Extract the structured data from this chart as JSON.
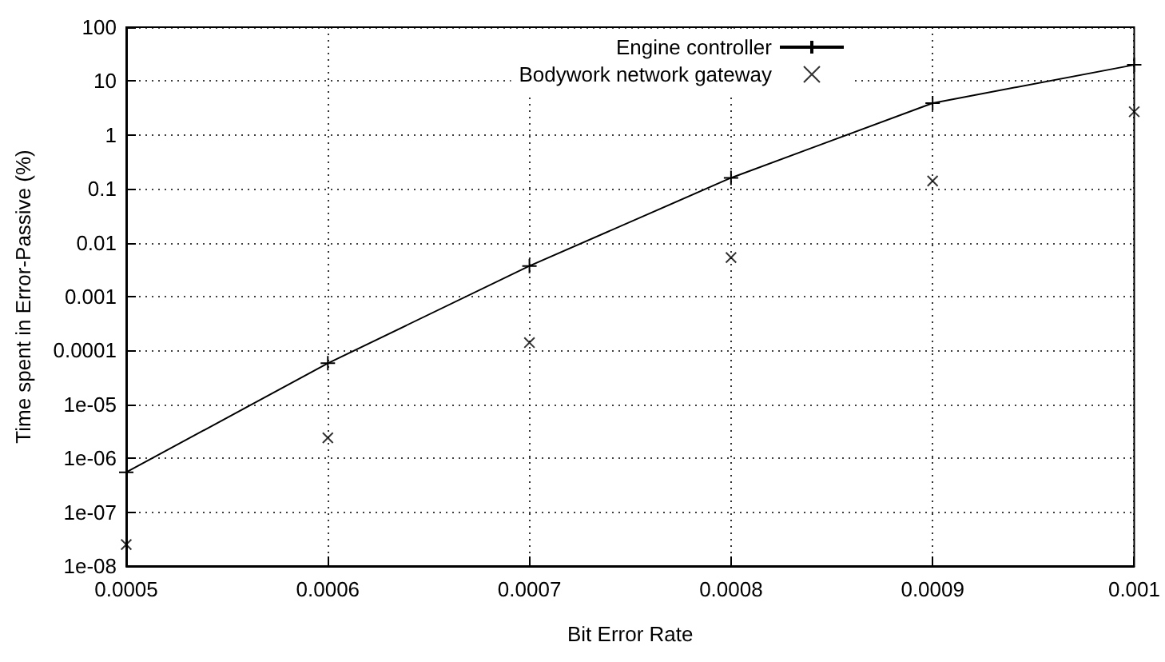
{
  "chart_data": {
    "type": "line",
    "xlabel": "Bit Error Rate",
    "ylabel": "Time spent in Error-Passive (%)",
    "x": [
      0.0005,
      0.0006,
      0.0007,
      0.0008,
      0.0009,
      0.001
    ],
    "series": [
      {
        "name": "Engine controller",
        "color": "#000000",
        "marker": "cross",
        "values": [
          5.5e-07,
          5.8e-05,
          0.0037,
          0.16,
          3.9,
          20
        ]
      },
      {
        "name": "Bodywork network gateway",
        "type": "scatter",
        "color": "#000000",
        "marker": "cross",
        "values": [
          2.5e-08,
          2.4e-06,
          0.00014,
          0.0053,
          0.14,
          2.7
        ]
      }
    ],
    "xlim": [
      0.0005,
      0.001
    ],
    "xticks": [
      0.0005,
      0.0006,
      0.0007,
      0.0008,
      0.0009,
      0.001
    ],
    "ylim": [
      1e-08,
      100
    ],
    "yticks": [
      {
        "value": 1e-08,
        "label": "1e-08"
      },
      {
        "value": 1e-07,
        "label": "1e-07"
      },
      {
        "value": 1e-06,
        "label": "1e-06"
      },
      {
        "value": 1e-05,
        "label": "1e-05"
      },
      0.0001,
      0.001,
      0.01,
      0.1,
      1,
      10,
      100
    ],
    "log": "y",
    "grid": true,
    "legend": "top right",
    "line_style": "solid"
  }
}
